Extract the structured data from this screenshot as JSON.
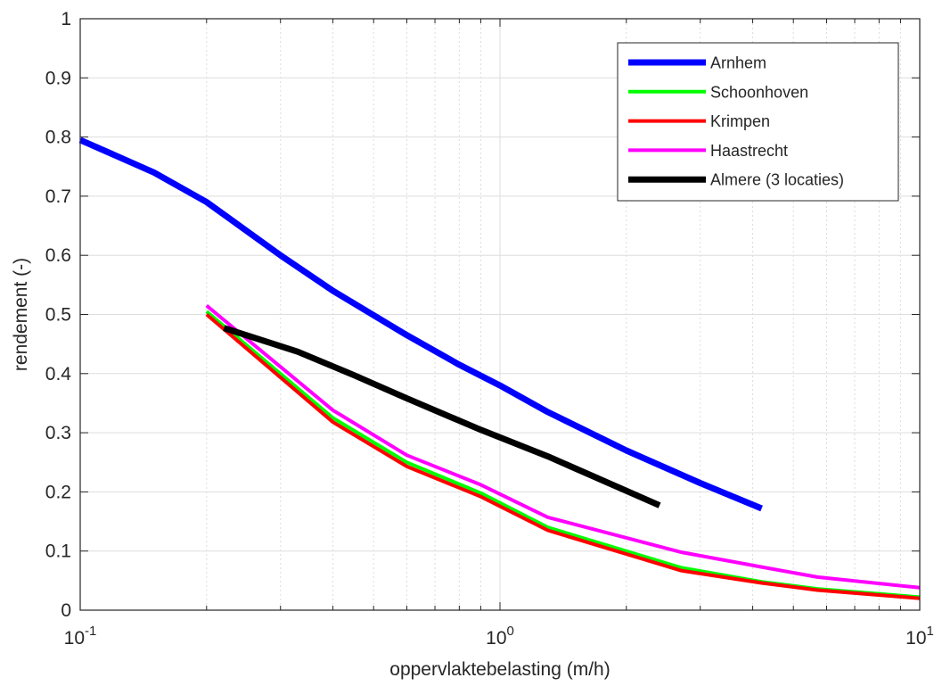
{
  "chart_data": {
    "type": "line",
    "title": "",
    "xlabel": "oppervlaktebelasting (m/h)",
    "ylabel": "rendement (-)",
    "xscale": "log",
    "xlim": [
      0.1,
      10
    ],
    "ylim": [
      0,
      1
    ],
    "x_ticks": [
      {
        "value": 0.1,
        "base": "10",
        "exp": "-1"
      },
      {
        "value": 1,
        "base": "10",
        "exp": "0"
      },
      {
        "value": 10,
        "base": "10",
        "exp": "1"
      }
    ],
    "y_ticks": [
      {
        "value": 0,
        "label": "0"
      },
      {
        "value": 0.1,
        "label": "0.1"
      },
      {
        "value": 0.2,
        "label": "0.2"
      },
      {
        "value": 0.3,
        "label": "0.3"
      },
      {
        "value": 0.4,
        "label": "0.4"
      },
      {
        "value": 0.5,
        "label": "0.5"
      },
      {
        "value": 0.6,
        "label": "0.6"
      },
      {
        "value": 0.7,
        "label": "0.7"
      },
      {
        "value": 0.8,
        "label": "0.8"
      },
      {
        "value": 0.9,
        "label": "0.9"
      },
      {
        "value": 1,
        "label": "1"
      }
    ],
    "grid": true,
    "minor_grid": true,
    "legend_position": "top-right",
    "series": [
      {
        "name": "Arnhem",
        "color": "#0000ff",
        "x": [
          0.1,
          0.15,
          0.2,
          0.3,
          0.4,
          0.6,
          0.8,
          1.0,
          1.3,
          2.0,
          3.0,
          4.2
        ],
        "y": [
          0.795,
          0.74,
          0.69,
          0.6,
          0.54,
          0.465,
          0.415,
          0.38,
          0.335,
          0.27,
          0.215,
          0.172
        ]
      },
      {
        "name": "Schoonhoven",
        "color": "#00ff00",
        "x": [
          0.2,
          0.4,
          0.6,
          0.9,
          1.3,
          2.7,
          4.2,
          5.7,
          10
        ],
        "y": [
          0.505,
          0.325,
          0.25,
          0.198,
          0.14,
          0.072,
          0.048,
          0.036,
          0.022
        ]
      },
      {
        "name": "Krimpen",
        "color": "#ff0000",
        "x": [
          0.2,
          0.4,
          0.6,
          0.9,
          1.3,
          2.7,
          4.2,
          5.7,
          10
        ],
        "y": [
          0.5,
          0.318,
          0.243,
          0.192,
          0.135,
          0.067,
          0.046,
          0.034,
          0.02
        ]
      },
      {
        "name": "Haastrecht",
        "color": "#ff00ff",
        "x": [
          0.2,
          0.4,
          0.6,
          0.9,
          1.3,
          2.7,
          4.2,
          5.7,
          10
        ],
        "y": [
          0.515,
          0.338,
          0.262,
          0.212,
          0.157,
          0.098,
          0.073,
          0.056,
          0.038
        ]
      },
      {
        "name": "Almere (3 locaties)",
        "color": "#000000",
        "x": [
          0.22,
          0.33,
          0.45,
          0.6,
          0.9,
          1.3,
          2.4
        ],
        "y": [
          0.477,
          0.437,
          0.397,
          0.358,
          0.305,
          0.26,
          0.177
        ]
      }
    ]
  }
}
